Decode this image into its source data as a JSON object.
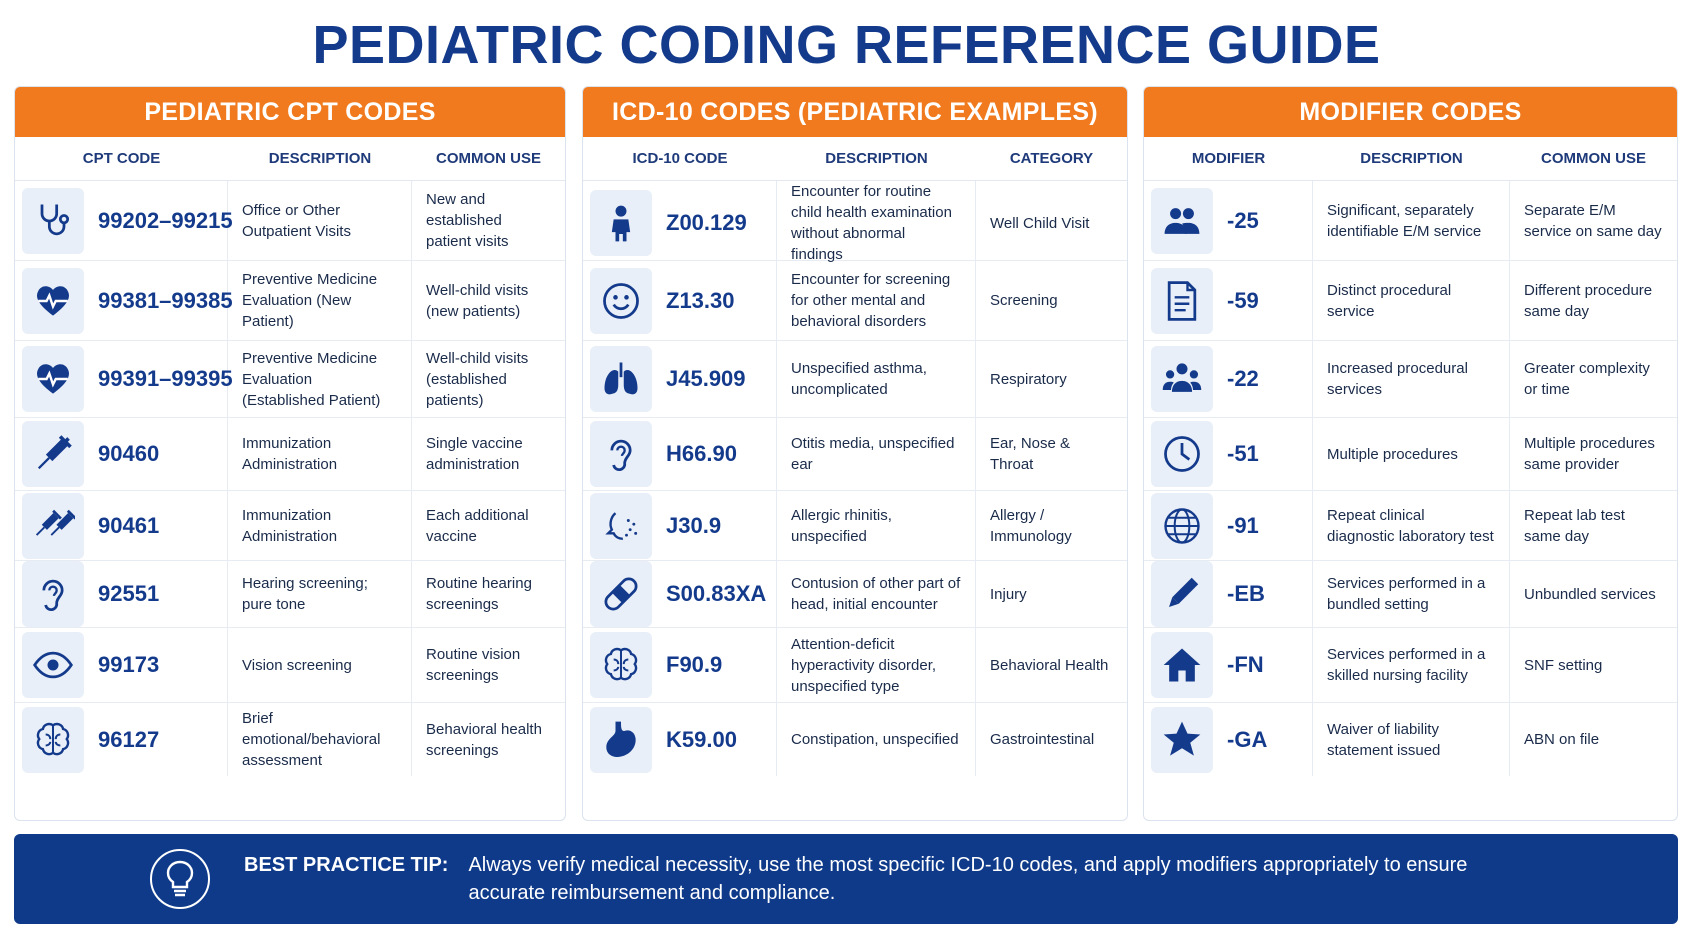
{
  "title": "PEDIATRIC CODING REFERENCE GUIDE",
  "accent_color": "#f07a1d",
  "brand_color": "#143a8c",
  "cpt": {
    "heading": "PEDIATRIC CPT CODES",
    "columns": [
      "CPT CODE",
      "DESCRIPTION",
      "COMMON USE"
    ],
    "rows": [
      {
        "icon": "stethoscope-icon",
        "code": "99202–99215",
        "description": "Office or Other Outpatient Visits",
        "use": "New and established patient visits"
      },
      {
        "icon": "heart-pulse-icon",
        "code": "99381–99385",
        "description": "Preventive Medicine Evaluation (New Patient)",
        "use": "Well-child visits (new patients)"
      },
      {
        "icon": "heart-pulse-icon",
        "code": "99391–99395",
        "description": "Preventive Medicine Evaluation (Established Patient)",
        "use": "Well-child visits (established patients)"
      },
      {
        "icon": "syringe-icon",
        "code": "90460",
        "description": "Immunization Administration",
        "use": "Single vaccine administration"
      },
      {
        "icon": "double-syringe-icon",
        "code": "90461",
        "description": "Immunization Administration",
        "use": "Each additional vaccine"
      },
      {
        "icon": "ear-icon",
        "code": "92551",
        "description": "Hearing screening; pure tone",
        "use": "Routine hearing screenings"
      },
      {
        "icon": "eye-icon",
        "code": "99173",
        "description": "Vision screening",
        "use": "Routine vision screenings"
      },
      {
        "icon": "brain-icon",
        "code": "96127",
        "description": "Brief emotional/behavioral assessment",
        "use": "Behavioral health screenings"
      }
    ]
  },
  "icd": {
    "heading": "ICD-10 CODES (PEDIATRIC EXAMPLES)",
    "columns": [
      "ICD-10 CODE",
      "DESCRIPTION",
      "CATEGORY"
    ],
    "rows": [
      {
        "icon": "child-icon",
        "code": "Z00.129",
        "description": "Encounter for routine child health examination without abnormal findings",
        "use": "Well Child Visit"
      },
      {
        "icon": "smiley-icon",
        "code": "Z13.30",
        "description": "Encounter for screening for other mental and behavioral disorders",
        "use": "Screening"
      },
      {
        "icon": "lungs-icon",
        "code": "J45.909",
        "description": "Unspecified asthma, uncomplicated",
        "use": "Respiratory"
      },
      {
        "icon": "ear-icon",
        "code": "H66.90",
        "description": "Otitis media, unspecified ear",
        "use": "Ear, Nose & Throat"
      },
      {
        "icon": "sneeze-icon",
        "code": "J30.9",
        "description": "Allergic rhinitis, unspecified",
        "use": "Allergy / Immunology"
      },
      {
        "icon": "bandage-icon",
        "code": "S00.83XA",
        "description": "Contusion of other part of head, initial encounter",
        "use": "Injury"
      },
      {
        "icon": "brain-icon",
        "code": "F90.9",
        "description": "Attention-deficit hyperactivity disorder, unspecified type",
        "use": "Behavioral Health"
      },
      {
        "icon": "stomach-icon",
        "code": "K59.00",
        "description": "Constipation, unspecified",
        "use": "Gastrointestinal"
      }
    ]
  },
  "mod": {
    "heading": "MODIFIER CODES",
    "columns": [
      "MODIFIER",
      "DESCRIPTION",
      "COMMON USE"
    ],
    "rows": [
      {
        "icon": "users-icon",
        "code": "-25",
        "description": "Significant, separately identifiable E/M service",
        "use": "Separate E/M service on same day"
      },
      {
        "icon": "document-icon",
        "code": "-59",
        "description": "Distinct procedural service",
        "use": "Different procedure same day"
      },
      {
        "icon": "group-icon",
        "code": "-22",
        "description": "Increased procedural services",
        "use": "Greater complexity or time"
      },
      {
        "icon": "clock-icon",
        "code": "-51",
        "description": "Multiple procedures",
        "use": "Multiple procedures same provider"
      },
      {
        "icon": "globe-icon",
        "code": "-91",
        "description": "Repeat clinical diagnostic laboratory test",
        "use": "Repeat lab test same day"
      },
      {
        "icon": "pencil-icon",
        "code": "-EB",
        "description": "Services performed in a bundled setting",
        "use": "Unbundled services"
      },
      {
        "icon": "home-icon",
        "code": "-FN",
        "description": "Services performed in a skilled nursing facility",
        "use": "SNF setting"
      },
      {
        "icon": "star-icon",
        "code": "-GA",
        "description": "Waiver of liability statement issued",
        "use": "ABN on file"
      }
    ]
  },
  "tip": {
    "icon": "lightbulb-icon",
    "label": "BEST PRACTICE TIP:",
    "text": "Always verify medical necessity, use the most specific ICD-10 codes, and apply modifiers appropriately to ensure accurate reimbursement and compliance."
  }
}
